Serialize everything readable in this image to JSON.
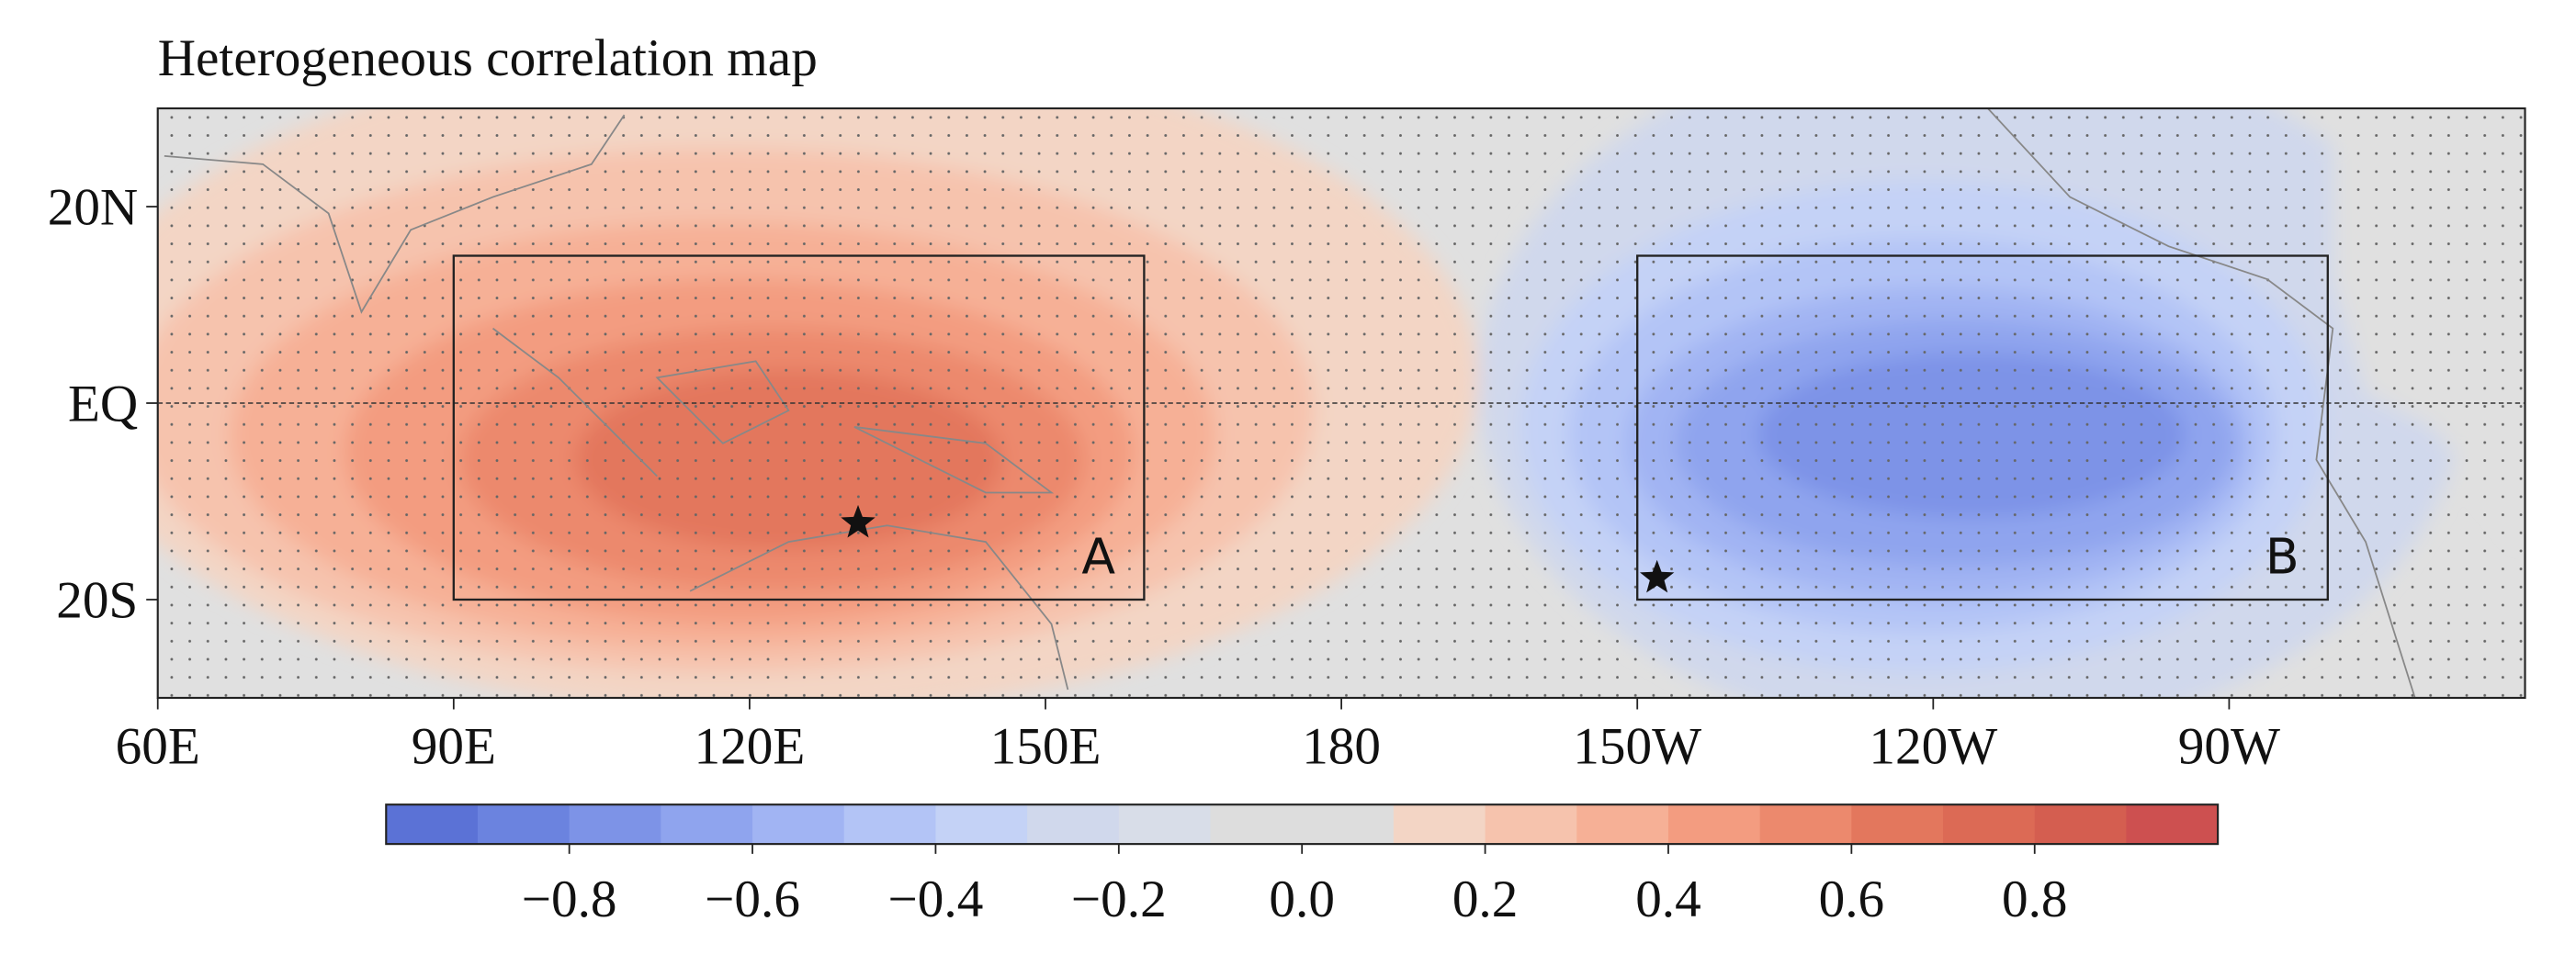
{
  "title": "Heterogeneous correlation map",
  "map": {
    "xlim": [
      60,
      300
    ],
    "ylim": [
      -30,
      30
    ],
    "xticks": [
      {
        "value": 60,
        "label": "60E"
      },
      {
        "value": 90,
        "label": "90E"
      },
      {
        "value": 120,
        "label": "120E"
      },
      {
        "value": 150,
        "label": "150E"
      },
      180,
      {
        "value": 210,
        "label": "150W"
      },
      {
        "value": 240,
        "label": "120W"
      },
      {
        "value": 270,
        "label": "90W"
      }
    ],
    "yticks": [
      {
        "value": 20,
        "label": "20N"
      },
      {
        "value": 0,
        "label": "EQ"
      },
      {
        "value": -20,
        "label": "20S"
      }
    ],
    "boxes": [
      {
        "label": "A",
        "lon": [
          90,
          160
        ],
        "lat": [
          -20,
          15
        ],
        "star": {
          "lon": 131,
          "lat": -12.2
        }
      },
      {
        "label": "B",
        "lon": [
          210,
          280
        ],
        "lat": [
          -20,
          15
        ],
        "star": {
          "lon": 212,
          "lat": -17.8
        }
      }
    ]
  },
  "colorbar": {
    "vlim": [
      -1,
      1
    ],
    "colors": [
      "#5b72d6",
      "#6b83df",
      "#7d93e7",
      "#8fa4ee",
      "#a1b4f3",
      "#b3c4f6",
      "#c4d2f6",
      "#d0d8ec",
      "#d8dde8",
      "#dddddd",
      "#dddddd",
      "#f3d5c5",
      "#f6c3ad",
      "#f6b096",
      "#f39c80",
      "#ec896d",
      "#e3775d",
      "#dc6a55",
      "#d45e50",
      "#cd5050"
    ],
    "ticks": [
      {
        "value": -0.8,
        "label": "−0.8"
      },
      {
        "value": -0.6,
        "label": "−0.6"
      },
      {
        "value": -0.4,
        "label": "−0.4"
      },
      {
        "value": -0.2,
        "label": "−0.2"
      },
      {
        "value": 0,
        "label": "0.0"
      },
      0.2,
      0.4,
      0.6,
      0.8
    ]
  }
}
